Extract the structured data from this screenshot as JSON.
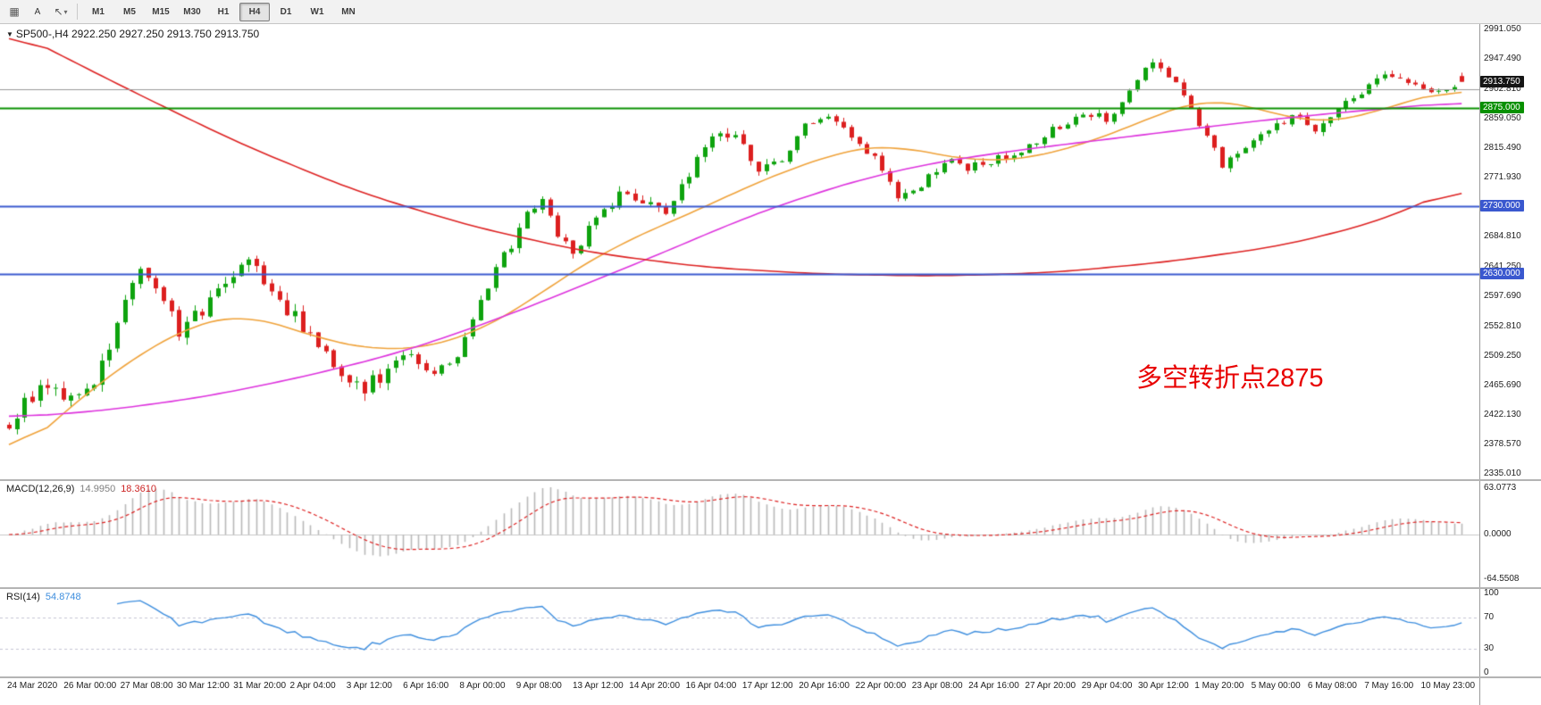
{
  "toolbar": {
    "icons": {
      "grid": "▦",
      "cursor": "↖",
      "caret": "▾"
    },
    "a_button": "A",
    "timeframes": [
      "M1",
      "M5",
      "M15",
      "M30",
      "H1",
      "H4",
      "D1",
      "W1",
      "MN"
    ],
    "active_timeframe": "H4"
  },
  "chart_header": {
    "collapse_icon": "▼",
    "text": "SP500-,H4 2922.250 2927.250 2913.750 2913.750"
  },
  "indicators": {
    "macd": {
      "label": "MACD(12,26,9)",
      "main": "14.9950",
      "signal": "18.3610",
      "axis": [
        "63.0773",
        "0.0000",
        "-64.5508"
      ]
    },
    "rsi": {
      "label": "RSI(14)",
      "value": "54.8748",
      "axis": [
        "100",
        "70",
        "30",
        "0"
      ],
      "levels": [
        70,
        30
      ]
    }
  },
  "annotation": {
    "text": "多空转折点2875",
    "color": "#e80000"
  },
  "chart_data": {
    "type": "candlestick",
    "symbol": "SP500-",
    "timeframe": "H4",
    "ylim": [
      2335.01,
      2991.05
    ],
    "candles": {
      "count": 189,
      "last": {
        "o": 2922.25,
        "h": 2927.25,
        "l": 2913.75,
        "c": 2913.75
      },
      "close_waypoints": [
        [
          0,
          2395
        ],
        [
          2,
          2440
        ],
        [
          5,
          2465
        ],
        [
          8,
          2445
        ],
        [
          11,
          2470
        ],
        [
          14,
          2555
        ],
        [
          17,
          2635
        ],
        [
          19,
          2605
        ],
        [
          22,
          2545
        ],
        [
          25,
          2575
        ],
        [
          28,
          2615
        ],
        [
          31,
          2645
        ],
        [
          34,
          2610
        ],
        [
          37,
          2565
        ],
        [
          40,
          2525
        ],
        [
          43,
          2485
        ],
        [
          46,
          2462
        ],
        [
          49,
          2490
        ],
        [
          52,
          2512
        ],
        [
          55,
          2482
        ],
        [
          58,
          2515
        ],
        [
          61,
          2590
        ],
        [
          64,
          2655
        ],
        [
          67,
          2715
        ],
        [
          69,
          2742
        ],
        [
          71,
          2690
        ],
        [
          73,
          2655
        ],
        [
          76,
          2715
        ],
        [
          79,
          2748
        ],
        [
          82,
          2738
        ],
        [
          85,
          2722
        ],
        [
          88,
          2775
        ],
        [
          91,
          2838
        ],
        [
          94,
          2832
        ],
        [
          97,
          2782
        ],
        [
          100,
          2798
        ],
        [
          103,
          2848
        ],
        [
          106,
          2868
        ],
        [
          109,
          2832
        ],
        [
          112,
          2802
        ],
        [
          115,
          2742
        ],
        [
          118,
          2758
        ],
        [
          121,
          2798
        ],
        [
          124,
          2788
        ],
        [
          127,
          2798
        ],
        [
          130,
          2808
        ],
        [
          133,
          2828
        ],
        [
          136,
          2848
        ],
        [
          139,
          2868
        ],
        [
          142,
          2858
        ],
        [
          145,
          2898
        ],
        [
          148,
          2948
        ],
        [
          151,
          2912
        ],
        [
          154,
          2852
        ],
        [
          157,
          2792
        ],
        [
          160,
          2818
        ],
        [
          163,
          2838
        ],
        [
          166,
          2866
        ],
        [
          169,
          2842
        ],
        [
          172,
          2878
        ],
        [
          175,
          2898
        ],
        [
          178,
          2928
        ],
        [
          181,
          2918
        ],
        [
          184,
          2902
        ],
        [
          186,
          2908
        ],
        [
          188,
          2913.75
        ]
      ]
    },
    "moving_averages": [
      {
        "name": "ma-fast-orange",
        "color": "#efa23a",
        "waypoints": [
          [
            0,
            2352
          ],
          [
            6,
            2415
          ],
          [
            12,
            2472
          ],
          [
            18,
            2520
          ],
          [
            24,
            2556
          ],
          [
            30,
            2572
          ],
          [
            36,
            2552
          ],
          [
            42,
            2528
          ],
          [
            48,
            2518
          ],
          [
            54,
            2520
          ],
          [
            60,
            2542
          ],
          [
            66,
            2578
          ],
          [
            72,
            2628
          ],
          [
            78,
            2668
          ],
          [
            84,
            2700
          ],
          [
            90,
            2728
          ],
          [
            96,
            2762
          ],
          [
            102,
            2788
          ],
          [
            108,
            2812
          ],
          [
            114,
            2822
          ],
          [
            120,
            2806
          ],
          [
            126,
            2796
          ],
          [
            132,
            2800
          ],
          [
            138,
            2818
          ],
          [
            144,
            2842
          ],
          [
            150,
            2872
          ],
          [
            155,
            2890
          ],
          [
            160,
            2880
          ],
          [
            165,
            2862
          ],
          [
            170,
            2852
          ],
          [
            175,
            2862
          ],
          [
            180,
            2882
          ],
          [
            184,
            2895
          ],
          [
            188,
            2904
          ]
        ]
      },
      {
        "name": "ma-mid-magenta",
        "color": "#dd33dd",
        "waypoints": [
          [
            0,
            2418
          ],
          [
            12,
            2428
          ],
          [
            25,
            2448
          ],
          [
            38,
            2478
          ],
          [
            50,
            2512
          ],
          [
            62,
            2558
          ],
          [
            74,
            2612
          ],
          [
            86,
            2668
          ],
          [
            95,
            2712
          ],
          [
            104,
            2748
          ],
          [
            112,
            2775
          ],
          [
            120,
            2795
          ],
          [
            130,
            2812
          ],
          [
            140,
            2826
          ],
          [
            150,
            2840
          ],
          [
            160,
            2854
          ],
          [
            170,
            2866
          ],
          [
            180,
            2876
          ],
          [
            188,
            2884
          ]
        ]
      },
      {
        "name": "ma-long-red",
        "color": "#dd2222",
        "waypoints": [
          [
            0,
            2992
          ],
          [
            15,
            2905
          ],
          [
            30,
            2822
          ],
          [
            45,
            2752
          ],
          [
            60,
            2700
          ],
          [
            75,
            2662
          ],
          [
            90,
            2640
          ],
          [
            105,
            2630
          ],
          [
            120,
            2627
          ],
          [
            135,
            2632
          ],
          [
            150,
            2648
          ],
          [
            165,
            2672
          ],
          [
            178,
            2710
          ],
          [
            188,
            2762
          ]
        ]
      }
    ],
    "hlines": [
      {
        "price": 2902.81,
        "color": "#999999",
        "width": 1
      },
      {
        "price": 2875.0,
        "color": "#089000",
        "width": 2
      },
      {
        "price": 2730.0,
        "color": "#3a58cf",
        "width": 2
      },
      {
        "price": 2630.0,
        "color": "#3a58cf",
        "width": 2
      }
    ],
    "price_axis": {
      "labels": [
        {
          "p": 2991.05,
          "t": "2991.050"
        },
        {
          "p": 2947.49,
          "t": "2947.490"
        },
        {
          "p": 2902.81,
          "t": "2902.810"
        },
        {
          "p": 2859.05,
          "t": "2859.050"
        },
        {
          "p": 2815.49,
          "t": "2815.490"
        },
        {
          "p": 2771.93,
          "t": "2771.930"
        },
        {
          "p": 2728.37,
          "t": "2728.370"
        },
        {
          "p": 2684.81,
          "t": "2684.810"
        },
        {
          "p": 2641.25,
          "t": "2641.250"
        },
        {
          "p": 2597.69,
          "t": "2597.690"
        },
        {
          "p": 2552.81,
          "t": "2552.810"
        },
        {
          "p": 2509.25,
          "t": "2509.250"
        },
        {
          "p": 2465.69,
          "t": "2465.690"
        },
        {
          "p": 2422.13,
          "t": "2422.130"
        },
        {
          "p": 2378.57,
          "t": "2378.570"
        },
        {
          "p": 2335.01,
          "t": "2335.010"
        }
      ],
      "markers": [
        {
          "p": 2913.75,
          "t": "2913.750",
          "bg": "#151515"
        },
        {
          "p": 2875.0,
          "t": "2875.000",
          "bg": "#089000"
        },
        {
          "p": 2730.0,
          "t": "2730.000",
          "bg": "#3a58cf"
        },
        {
          "p": 2630.0,
          "t": "2630.000",
          "bg": "#3a58cf"
        }
      ]
    },
    "time_axis": {
      "labels": [
        "24 Mar 2020",
        "26 Mar 00:00",
        "27 Mar 08:00",
        "30 Mar 12:00",
        "31 Mar 20:00",
        "2 Apr 04:00",
        "3 Apr 12:00",
        "6 Apr 16:00",
        "8 Apr 00:00",
        "9 Apr 08:00",
        "13 Apr 12:00",
        "14 Apr 20:00",
        "16 Apr 04:00",
        "17 Apr 12:00",
        "20 Apr 16:00",
        "22 Apr 00:00",
        "23 Apr 08:00",
        "24 Apr 16:00",
        "27 Apr 20:00",
        "29 Apr 04:00",
        "30 Apr 12:00",
        "1 May 20:00",
        "5 May 00:00",
        "6 May 08:00",
        "7 May 16:00",
        "10 May 23:00"
      ]
    },
    "colors": {
      "up": "#0ea30e",
      "down": "#dc1f1f",
      "macd_hist": "#b9b9b9",
      "macd_signal": "#dd2222",
      "rsi": "#3e8ede"
    }
  }
}
